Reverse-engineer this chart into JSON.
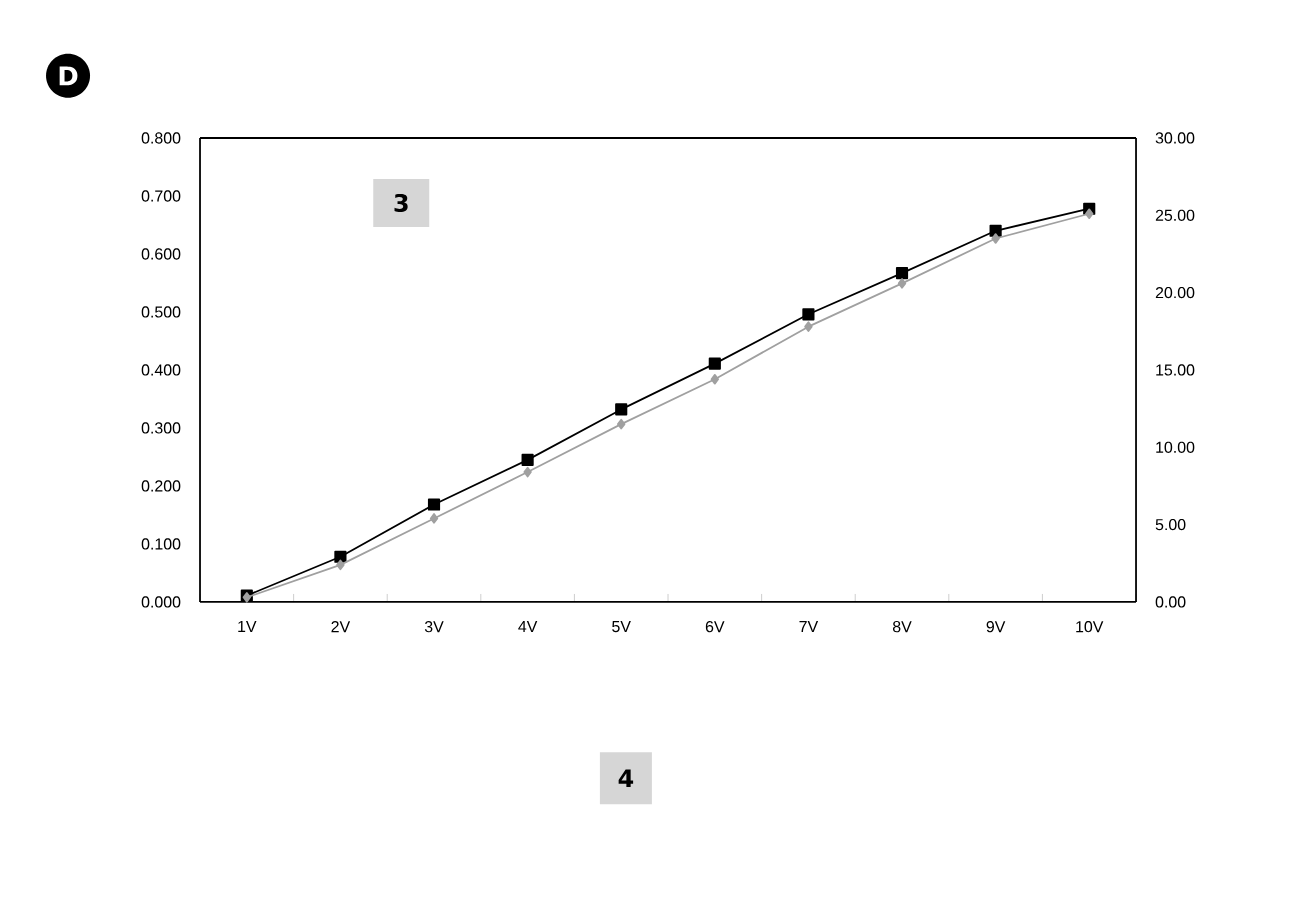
{
  "chart_data": {
    "type": "line",
    "categories": [
      "1V",
      "2V",
      "3V",
      "4V",
      "5V",
      "6V",
      "7V",
      "8V",
      "9V",
      "10V"
    ],
    "series": [
      {
        "color": "#000000",
        "marker": "square",
        "values": [
          0.011,
          0.078,
          0.168,
          0.245,
          0.332,
          0.411,
          0.496,
          0.567,
          0.64,
          0.678
        ]
      },
      {
        "color": "#a0a0a0",
        "marker": "diamond",
        "axis": "y2",
        "values": [
          0.3,
          2.4,
          5.4,
          8.4,
          11.5,
          14.4,
          17.8,
          20.6,
          23.5,
          25.1
        ]
      }
    ],
    "ylim": [
      0,
      0.8
    ],
    "yticks": [
      {
        "value": 0,
        "label": "0.000"
      },
      {
        "value": 0.1,
        "label": "0.100"
      },
      {
        "value": 0.2,
        "label": "0.200"
      },
      {
        "value": 0.3,
        "label": "0.300"
      },
      {
        "value": 0.4,
        "label": "0.400"
      },
      {
        "value": 0.5,
        "label": "0.500"
      },
      {
        "value": 0.6,
        "label": "0.600"
      },
      {
        "value": 0.7,
        "label": "0.700"
      },
      {
        "value": 0.8,
        "label": "0.800"
      }
    ],
    "y2lim": [
      0,
      30
    ],
    "y2ticks": [
      {
        "value": 0,
        "label": "0.00"
      },
      {
        "value": 5,
        "label": "5.00"
      },
      {
        "value": 10,
        "label": "10.00"
      },
      {
        "value": 15,
        "label": "15.00"
      },
      {
        "value": 20,
        "label": "20.00"
      },
      {
        "value": 25,
        "label": "25.00"
      },
      {
        "value": 30,
        "label": "30.00"
      }
    ],
    "grid": false,
    "annotations": [
      "D",
      "3",
      "4"
    ]
  }
}
